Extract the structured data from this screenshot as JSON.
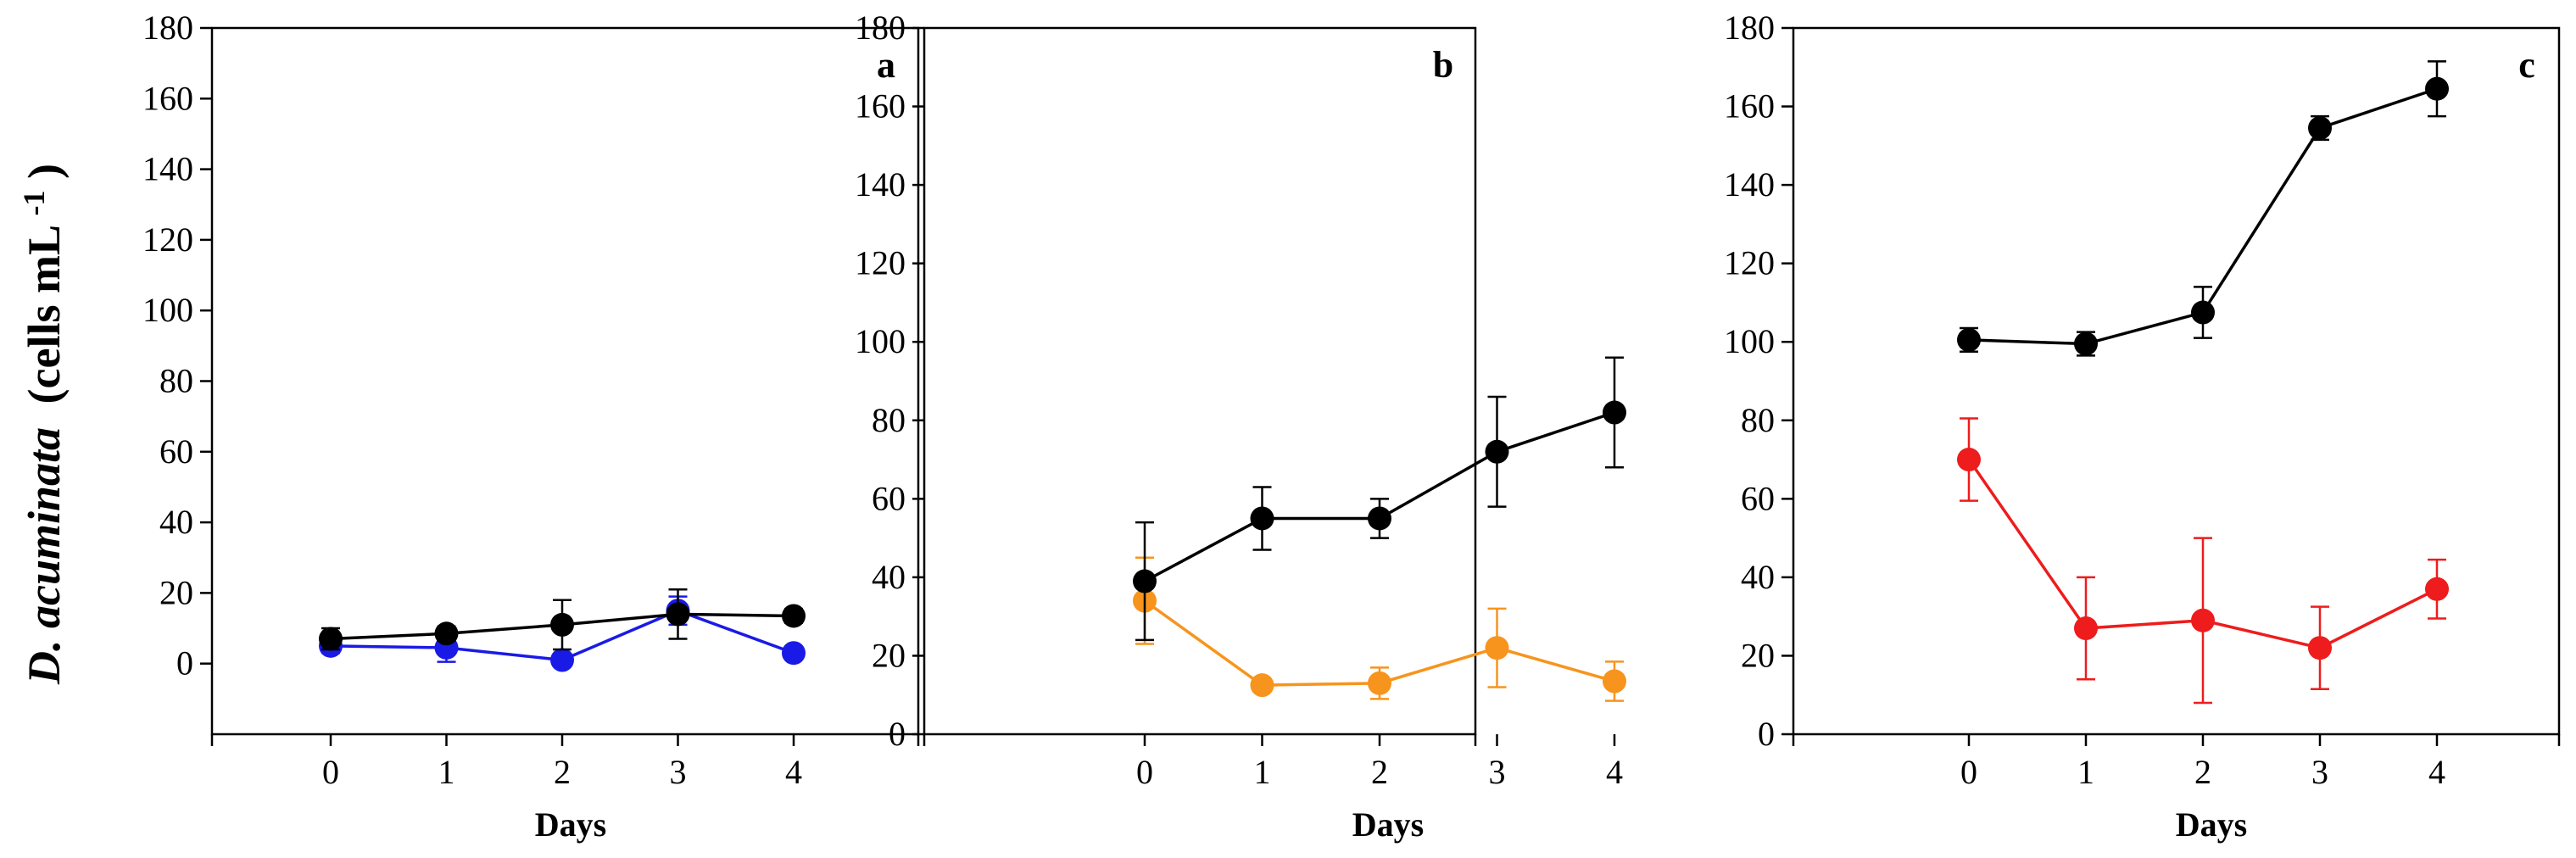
{
  "figure": {
    "ylabel_species": "D. acuminata",
    "ylabel_units": "(cells mL",
    "ylabel_sup": "-1",
    "ylabel_close": ")"
  },
  "chart_data": [
    {
      "type": "line",
      "panel_label": "a",
      "xlabel": "Days",
      "x": [
        0,
        1,
        2,
        3,
        4
      ],
      "ylim": [
        -20,
        180
      ],
      "yticks": [
        0,
        20,
        40,
        60,
        80,
        100,
        120,
        140,
        160,
        180
      ],
      "xticks": [
        0,
        1,
        2,
        3,
        4
      ],
      "series": [
        {
          "color": "#000000",
          "values": [
            7,
            8.5,
            11,
            14,
            13.5
          ],
          "errors": [
            3,
            2,
            7,
            7,
            2
          ]
        },
        {
          "color": "#1a1ae6",
          "values": [
            5,
            4.5,
            1,
            15,
            3
          ],
          "errors": [
            2,
            4,
            1,
            4,
            1
          ]
        }
      ]
    },
    {
      "type": "line",
      "panel_label": "b",
      "xlabel": "Days",
      "x": [
        0,
        1,
        2,
        3,
        4
      ],
      "ylim": [
        0,
        180
      ],
      "yticks": [
        0,
        20,
        40,
        60,
        80,
        100,
        120,
        140,
        160,
        180
      ],
      "xticks": [
        0,
        1,
        2,
        3,
        4
      ],
      "series": [
        {
          "color": "#000000",
          "values": [
            39,
            55,
            55,
            72,
            82
          ],
          "errors": [
            15,
            8,
            5,
            14,
            14
          ]
        },
        {
          "color": "#f7941d",
          "values": [
            34,
            12.5,
            13,
            22,
            13.5
          ],
          "errors": [
            11,
            1,
            4,
            10,
            5
          ]
        }
      ]
    },
    {
      "type": "line",
      "panel_label": "c",
      "xlabel": "Days",
      "x": [
        0,
        1,
        2,
        3,
        4
      ],
      "ylim": [
        0,
        180
      ],
      "yticks": [
        0,
        20,
        40,
        60,
        80,
        100,
        120,
        140,
        160,
        180
      ],
      "xticks": [
        0,
        1,
        2,
        3,
        4
      ],
      "series": [
        {
          "color": "#000000",
          "values": [
            100.5,
            99.5,
            107.5,
            154.5,
            164.5
          ],
          "errors": [
            3,
            3,
            6.5,
            3,
            7
          ]
        },
        {
          "color": "#ee1c1c",
          "values": [
            70,
            27,
            29,
            22,
            37
          ],
          "errors": [
            10.5,
            13,
            21,
            10.5,
            7.5
          ]
        }
      ]
    }
  ]
}
